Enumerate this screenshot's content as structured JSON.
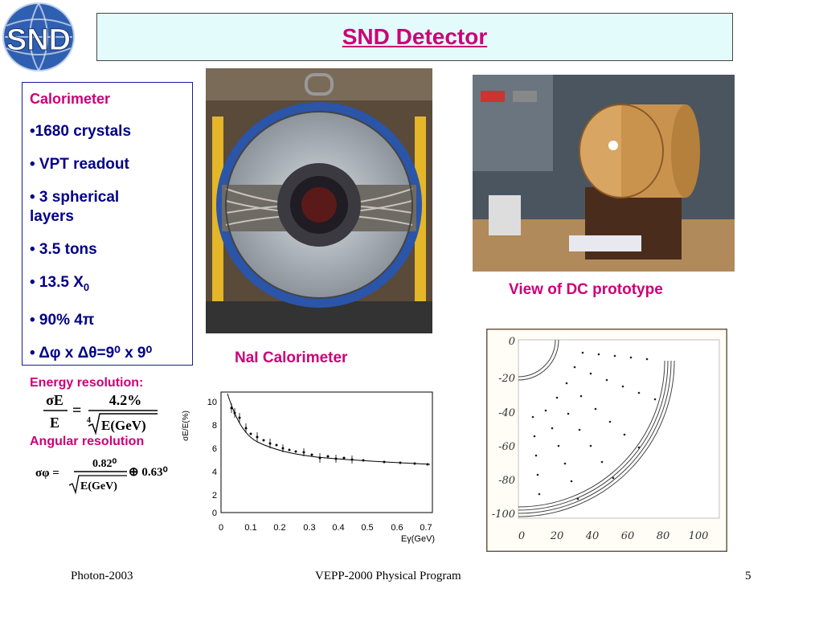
{
  "logo": {
    "text": "SND"
  },
  "title": "SND Detector",
  "specs": {
    "heading": "Calorimeter",
    "items": [
      "•1680 crystals",
      "• VPT readout",
      "• 3 spherical layers",
      "• 3.5 tons"
    ],
    "item_x0_prefix": "• 13.5 X",
    "item_x0_sub": "0",
    "item_solid": "• 90% 4π",
    "item_granularity": "• Δφ x Δθ=9⁰ x 9⁰"
  },
  "energy": {
    "label": "Energy resolution:",
    "lhs_num": "σE",
    "lhs_den": "E",
    "rhs_num": "4.2%",
    "root_index": "4",
    "rhs_den": "E(GeV)"
  },
  "angular": {
    "label": "Angular resolution",
    "lhs": "σφ =",
    "num": "0.82⁰",
    "den": "E(GeV)",
    "oplus": "⊕ 0.63⁰"
  },
  "captions": {
    "calorimeter": "NaI Calorimeter",
    "dc": "View of DC prototype"
  },
  "plot": {
    "ylabel": "σE/E(%)",
    "xlabel": "Eγ(GeV)",
    "xticks": [
      "0",
      "0.1",
      "0.2",
      "0.3",
      "0.4",
      "0.5",
      "0.6",
      "0.7"
    ],
    "yticks": [
      "2",
      "4",
      "6",
      "8",
      "10"
    ],
    "yzero": "0"
  },
  "diagram": {
    "yticks": [
      "0",
      "-20",
      "-40",
      "-60",
      "-80",
      "-100"
    ],
    "xticks": [
      "0",
      "20",
      "40",
      "60",
      "80",
      "100"
    ]
  },
  "footer": {
    "left": "Photon-2003",
    "center": "VEPP-2000 Physical Program",
    "right": "5"
  },
  "colors": {
    "title": "#cc0077",
    "title_bg": "#e4fbfb",
    "spec_text": "#000088",
    "accent": "#cc0077"
  }
}
